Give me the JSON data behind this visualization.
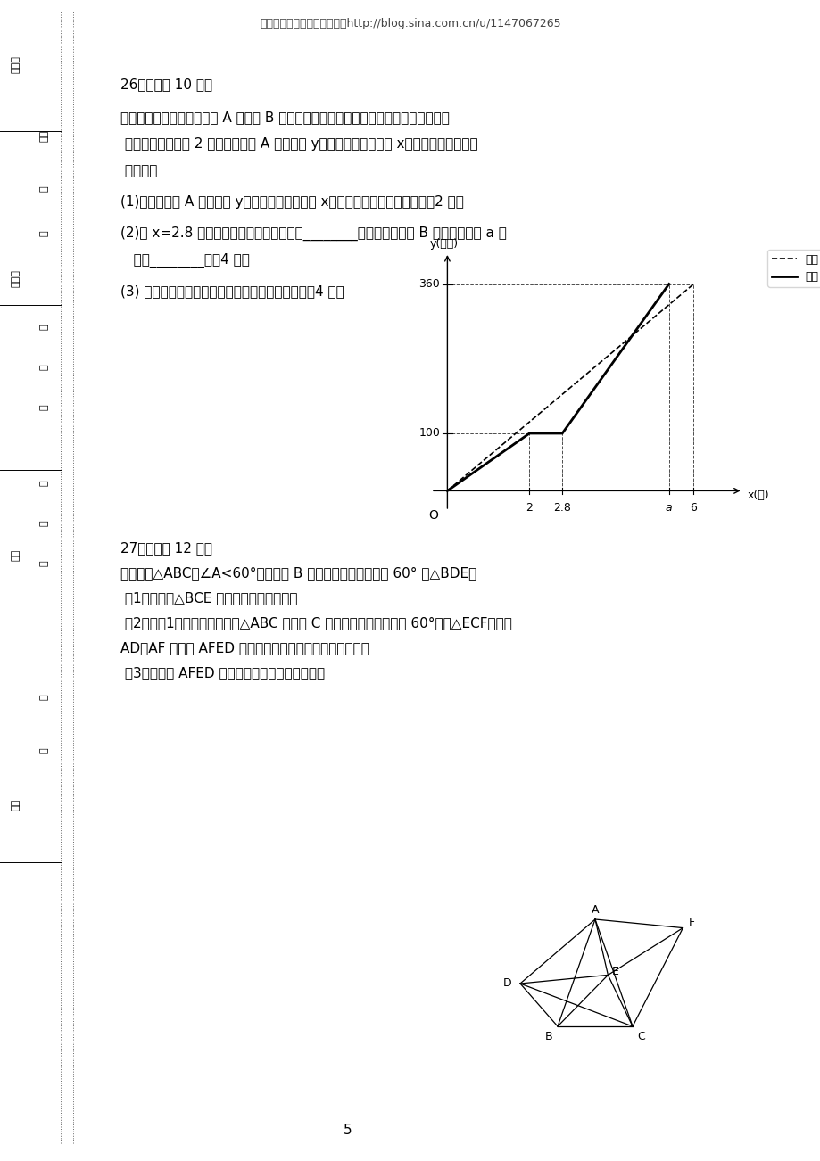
{
  "header": "北京初中数学周老师的博客：http://blog.sina.com.cn/u/1147067265",
  "q26_title": "26．（本题 10 分）",
  "q26_p1": "甲、乙两车同时同时出发从 A 地前往 B 地，乙行驶途中有一次停车修理，修好后乙组的",
  "q26_p2": " 行驶速度是原来的 2 倍．两车距离 A 地的路程 y（千米）与行驶时间 x（时）的函数图象如",
  "q26_p3": " 图所示．",
  "q26_q1": "(1)求甲车距离 A 地的路程 y（千米）与行驶时间 x（时）之间的函数关系式．（2 分）",
  "q26_q2a": "(2)当 x=2.8 时，甲、乙两车之间的距离是________千米；乙车到达 B 地所用的时间 a 的",
  "q26_q2b": "   値为________．（4 分）",
  "q26_q3": "(3) 行驶过程中，两车出发多长时间首次后相遇？（4 分）",
  "q27_title": "27．（本题 12 分）",
  "q27_p1": "如图，将△ABC（∠A<60°）以顶点 B 为旋转中心逆时针旋转 60° 得△BDE；",
  "q27_q1": " （1）试判断△BCE 的形状，请说明理由。",
  "q27_q2a": " （2）在（1）的条件下，再将△ABC 以顶点 C 为旋转中心顺时针旋转 60°，得△ECF；连接",
  "q27_q2b": "AD、AF 四边形 AFED 一定是平行四边形吗？请说明理由。",
  "q27_q3": " （3）四边形 AFED 可能是矩形吗？请说明理由。",
  "page_num": "5",
  "graph_ylabel": "y(千米)",
  "graph_xlabel": "x(时)",
  "legend_jia": "甲车",
  "legend_yi": "乙车",
  "sidebar_col1": [
    "座位号",
    "试场号",
    "姓名",
    "班级"
  ],
  "sidebar_col2": [
    "答卷",
    "答",
    "线",
    "不",
    "要",
    "线",
    "内",
    "订",
    "装",
    "封",
    "密"
  ]
}
